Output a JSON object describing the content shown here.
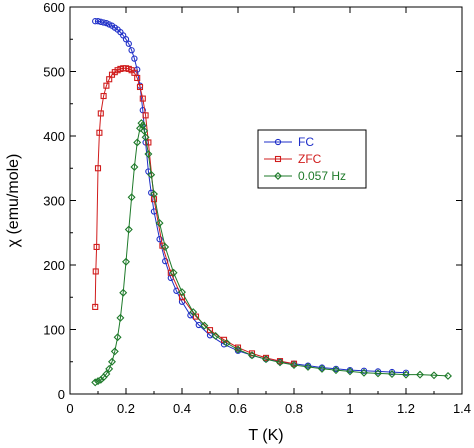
{
  "chart_data": {
    "type": "scatter",
    "xlabel": "T (K)",
    "ylabel": "χ (emu/mole)",
    "xlim": [
      0,
      1.4
    ],
    "ylim": [
      0,
      600
    ],
    "x_ticks": [
      "0",
      "0.2",
      "0.4",
      "0.6",
      "0.8",
      "1",
      "1.2",
      "1.4"
    ],
    "y_ticks": [
      "0",
      "100",
      "200",
      "300",
      "400",
      "500",
      "600"
    ],
    "x_tick_values": [
      0,
      0.2,
      0.4,
      0.6,
      0.8,
      1.0,
      1.2,
      1.4
    ],
    "y_tick_values": [
      0,
      100,
      200,
      300,
      400,
      500,
      600
    ],
    "grid": false,
    "legend_position": "center-right",
    "series": [
      {
        "name": "FC",
        "color": "#1f2fc8",
        "marker": "circle",
        "x": [
          0.09,
          0.1,
          0.11,
          0.12,
          0.13,
          0.14,
          0.15,
          0.16,
          0.17,
          0.18,
          0.19,
          0.2,
          0.21,
          0.22,
          0.23,
          0.24,
          0.25,
          0.26,
          0.27,
          0.28,
          0.29,
          0.3,
          0.32,
          0.34,
          0.36,
          0.38,
          0.4,
          0.43,
          0.46,
          0.5,
          0.55,
          0.6,
          0.65,
          0.7,
          0.75,
          0.8,
          0.85,
          0.9,
          0.95,
          1.0,
          1.05,
          1.1,
          1.15,
          1.2
        ],
        "y": [
          578,
          578,
          577,
          576,
          575,
          573,
          571,
          568,
          565,
          561,
          556,
          550,
          543,
          533,
          520,
          503,
          478,
          440,
          390,
          345,
          312,
          283,
          240,
          206,
          180,
          160,
          143,
          122,
          107,
          91,
          77,
          67,
          60,
          54,
          50,
          47,
          44,
          41,
          39,
          37,
          36,
          35,
          34,
          33
        ]
      },
      {
        "name": "ZFC",
        "color": "#d01c1c",
        "marker": "square",
        "x": [
          0.09,
          0.092,
          0.095,
          0.1,
          0.105,
          0.11,
          0.12,
          0.13,
          0.14,
          0.15,
          0.16,
          0.17,
          0.18,
          0.19,
          0.2,
          0.21,
          0.22,
          0.23,
          0.24,
          0.25,
          0.26,
          0.27,
          0.28,
          0.3,
          0.33,
          0.36,
          0.4,
          0.45,
          0.5,
          0.55,
          0.6,
          0.65,
          0.7,
          0.75,
          0.8
        ],
        "y": [
          135,
          190,
          228,
          350,
          405,
          435,
          462,
          478,
          488,
          495,
          499,
          502,
          504,
          505,
          505,
          504,
          502,
          498,
          490,
          476,
          458,
          432,
          390,
          302,
          230,
          188,
          150,
          120,
          99,
          84,
          72,
          63,
          56,
          51,
          47
        ]
      },
      {
        "name": "0.057 Hz",
        "color": "#1e7a2a",
        "marker": "diamond",
        "x": [
          0.09,
          0.1,
          0.11,
          0.12,
          0.13,
          0.14,
          0.15,
          0.16,
          0.17,
          0.18,
          0.19,
          0.2,
          0.21,
          0.22,
          0.23,
          0.24,
          0.25,
          0.255,
          0.26,
          0.265,
          0.27,
          0.28,
          0.29,
          0.3,
          0.32,
          0.34,
          0.37,
          0.4,
          0.44,
          0.48,
          0.52,
          0.56,
          0.6,
          0.65,
          0.7,
          0.75,
          0.8,
          0.85,
          0.9,
          0.95,
          1.0,
          1.05,
          1.1,
          1.15,
          1.2,
          1.25,
          1.3,
          1.35
        ],
        "y": [
          18,
          20,
          22,
          26,
          31,
          39,
          50,
          66,
          88,
          118,
          157,
          205,
          255,
          305,
          352,
          390,
          412,
          420,
          416,
          408,
          398,
          372,
          340,
          310,
          265,
          228,
          188,
          158,
          127,
          106,
          90,
          79,
          69,
          60,
          54,
          49,
          45,
          42,
          39,
          37,
          35,
          33,
          32,
          31,
          30,
          30,
          29,
          28
        ]
      }
    ]
  }
}
